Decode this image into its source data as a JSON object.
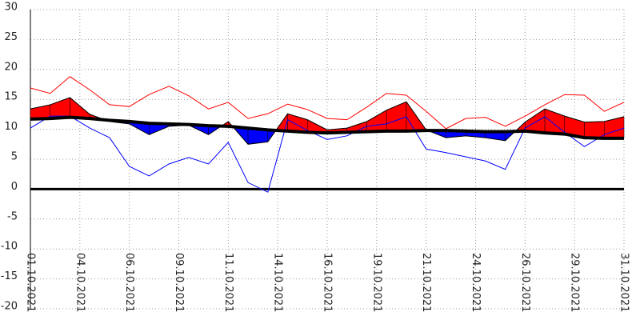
{
  "chart_data": {
    "type": "temperature-band",
    "x": [
      1,
      2,
      3,
      4,
      5,
      6,
      7,
      8,
      9,
      10,
      11,
      12,
      13,
      14,
      15,
      16,
      17,
      18,
      19,
      20,
      21,
      22,
      23,
      24,
      25,
      26,
      27,
      28,
      29,
      30,
      31
    ],
    "xlim": [
      1,
      31
    ],
    "xticks": [
      {
        "value": 1,
        "label": "01.10.2021"
      },
      {
        "value": 3.5,
        "label": "04.10.2021"
      },
      {
        "value": 6,
        "label": "06.10.2021"
      },
      {
        "value": 8.5,
        "label": "09.10.2021"
      },
      {
        "value": 11,
        "label": "11.10.2021"
      },
      {
        "value": 13.5,
        "label": "14.10.2021"
      },
      {
        "value": 16,
        "label": "16.10.2021"
      },
      {
        "value": 18.5,
        "label": "19.10.2021"
      },
      {
        "value": 21,
        "label": "21.10.2021"
      },
      {
        "value": 23.5,
        "label": "24.10.2021"
      },
      {
        "value": 26,
        "label": "26.10.2021"
      },
      {
        "value": 28.5,
        "label": "29.10.2021"
      },
      {
        "value": 31,
        "label": "31.10.2021"
      }
    ],
    "ylim": [
      -20,
      30
    ],
    "yticks": [
      30,
      25,
      20,
      15,
      10,
      5,
      0,
      -5,
      -10,
      -15,
      -20
    ],
    "grid": true,
    "fill_above_color": "#ff0000",
    "fill_below_color": "#0000ff",
    "series": [
      {
        "color": "#ff0000",
        "line_width": 1,
        "values": [
          16.9,
          16.0,
          18.8,
          16.6,
          14.1,
          13.8,
          15.8,
          17.2,
          15.6,
          13.4,
          14.5,
          11.8,
          12.6,
          14.2,
          13.3,
          11.8,
          11.6,
          13.7,
          16.0,
          15.7,
          13.0,
          10.1,
          11.8,
          12.0,
          10.5,
          12.2,
          14.1,
          15.8,
          15.7,
          13.0,
          14.5
        ]
      },
      {
        "color": "#0000ff",
        "line_width": 1,
        "values": [
          10.2,
          12.2,
          12.2,
          10.2,
          8.6,
          3.8,
          2.2,
          4.2,
          5.3,
          4.2,
          7.8,
          1.1,
          -0.5,
          11.6,
          9.8,
          8.3,
          8.9,
          10.5,
          10.9,
          12.1,
          6.7,
          6.1,
          5.4,
          4.7,
          3.3,
          10.2,
          12.1,
          9.5,
          7.1,
          9.1,
          10.2
        ]
      },
      {
        "color": "#000000",
        "line_width": 1,
        "values": [
          13.4,
          14.1,
          15.3,
          12.5,
          11.3,
          10.9,
          9.1,
          10.5,
          10.7,
          9.1,
          11.3,
          7.5,
          7.9,
          12.6,
          11.6,
          9.9,
          10.2,
          11.3,
          13.2,
          14.6,
          9.9,
          8.6,
          8.9,
          8.6,
          8.1,
          11.2,
          13.4,
          12.2,
          11.2,
          11.3,
          12.1
        ]
      },
      {
        "color": "#000000",
        "line_width": 4,
        "values": [
          11.7,
          11.8,
          12.0,
          11.8,
          11.5,
          11.3,
          11.0,
          10.9,
          10.8,
          10.6,
          10.5,
          10.2,
          9.9,
          9.7,
          9.5,
          9.4,
          9.5,
          9.6,
          9.7,
          9.7,
          9.8,
          9.8,
          9.7,
          9.6,
          9.6,
          9.7,
          9.4,
          9.2,
          8.6,
          8.5,
          8.5
        ]
      }
    ]
  }
}
